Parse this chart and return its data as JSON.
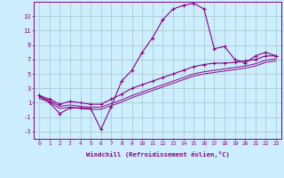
{
  "xlabel": "Windchill (Refroidissement éolien,°C)",
  "bg_color": "#cceeff",
  "line_color": "#880088",
  "grid_color": "#aacccc",
  "xlim": [
    -0.5,
    23.5
  ],
  "ylim": [
    -4.0,
    15.0
  ],
  "xticks": [
    0,
    1,
    2,
    3,
    4,
    5,
    6,
    7,
    8,
    9,
    10,
    11,
    12,
    13,
    14,
    15,
    16,
    17,
    18,
    19,
    20,
    21,
    22,
    23
  ],
  "yticks": [
    -3,
    -1,
    1,
    3,
    5,
    7,
    9,
    11,
    13
  ],
  "series1_x": [
    0,
    1,
    2,
    3,
    4,
    5,
    6,
    7,
    8,
    9,
    10,
    11,
    12,
    13,
    14,
    15,
    16,
    17,
    18,
    19,
    20,
    21,
    22,
    23
  ],
  "series1_y": [
    2.0,
    1.0,
    -0.5,
    0.3,
    0.3,
    0.2,
    -2.7,
    0.5,
    4.0,
    5.5,
    8.0,
    10.0,
    12.5,
    14.0,
    14.5,
    14.8,
    14.0,
    8.5,
    8.8,
    7.0,
    6.5,
    7.5,
    8.0,
    7.5
  ],
  "series2_x": [
    0,
    1,
    2,
    3,
    4,
    5,
    6,
    7,
    8,
    9,
    10,
    11,
    12,
    13,
    14,
    15,
    16,
    17,
    18,
    19,
    20,
    21,
    22,
    23
  ],
  "series2_y": [
    2.0,
    1.5,
    0.8,
    1.2,
    1.0,
    0.8,
    0.8,
    1.5,
    2.2,
    3.0,
    3.5,
    4.0,
    4.5,
    5.0,
    5.5,
    6.0,
    6.3,
    6.5,
    6.5,
    6.6,
    6.8,
    7.0,
    7.5,
    7.5
  ],
  "series3_x": [
    0,
    1,
    2,
    3,
    4,
    5,
    6,
    7,
    8,
    9,
    10,
    11,
    12,
    13,
    14,
    15,
    16,
    17,
    18,
    19,
    20,
    21,
    22,
    23
  ],
  "series3_y": [
    1.8,
    1.3,
    0.5,
    0.7,
    0.5,
    0.4,
    0.4,
    0.9,
    1.4,
    2.0,
    2.5,
    3.0,
    3.5,
    4.0,
    4.5,
    5.0,
    5.3,
    5.5,
    5.7,
    5.9,
    6.1,
    6.4,
    6.9,
    7.1
  ],
  "series4_x": [
    0,
    1,
    2,
    3,
    4,
    5,
    6,
    7,
    8,
    9,
    10,
    11,
    12,
    13,
    14,
    15,
    16,
    17,
    18,
    19,
    20,
    21,
    22,
    23
  ],
  "series4_y": [
    1.6,
    1.1,
    0.2,
    0.4,
    0.2,
    0.1,
    0.1,
    0.6,
    1.1,
    1.7,
    2.2,
    2.7,
    3.2,
    3.7,
    4.2,
    4.7,
    5.0,
    5.2,
    5.4,
    5.6,
    5.8,
    6.1,
    6.6,
    6.8
  ]
}
